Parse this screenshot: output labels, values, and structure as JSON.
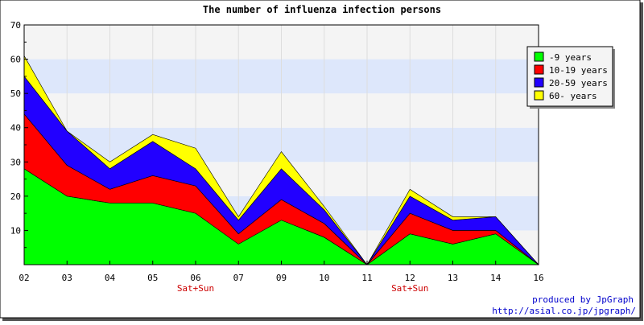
{
  "chart_data": {
    "type": "area",
    "stacked": true,
    "title": "The number of influenza infection persons",
    "xlabel": "",
    "ylabel": "",
    "categories": [
      "02",
      "03",
      "04",
      "05",
      "06",
      "07",
      "09",
      "10",
      "11",
      "12",
      "13",
      "14",
      "16"
    ],
    "category_notes": {
      "06": "Sat+Sun",
      "12": "Sat+Sun"
    },
    "ylim": [
      0,
      70
    ],
    "yticks": [
      10,
      20,
      30,
      40,
      50,
      60,
      70
    ],
    "series": [
      {
        "name": "-9 years",
        "color": "#00ff00",
        "values": [
          28,
          20,
          18,
          18,
          15,
          6,
          13,
          8,
          0,
          9,
          6,
          9,
          0
        ]
      },
      {
        "name": "10-19 years",
        "color": "#ff0000",
        "values": [
          16,
          9,
          4,
          8,
          8,
          3,
          6,
          4,
          0,
          6,
          4,
          1,
          0
        ]
      },
      {
        "name": "20-59 years",
        "color": "#2200ff",
        "values": [
          11,
          10,
          6,
          10,
          5,
          4,
          9,
          4,
          0,
          5,
          3,
          4,
          0
        ]
      },
      {
        "name": "60- years",
        "color": "#ffff00",
        "values": [
          6,
          0,
          2,
          2,
          6,
          1,
          5,
          1,
          0,
          2,
          1,
          0,
          0
        ]
      }
    ],
    "legend_position": "top-right",
    "grid": true,
    "band_colors": [
      "#f4f4f4",
      "#dde7fb"
    ]
  },
  "credits": {
    "line1": "produced by JpGraph",
    "line2": "http://asial.co.jp/jpgraph/"
  }
}
